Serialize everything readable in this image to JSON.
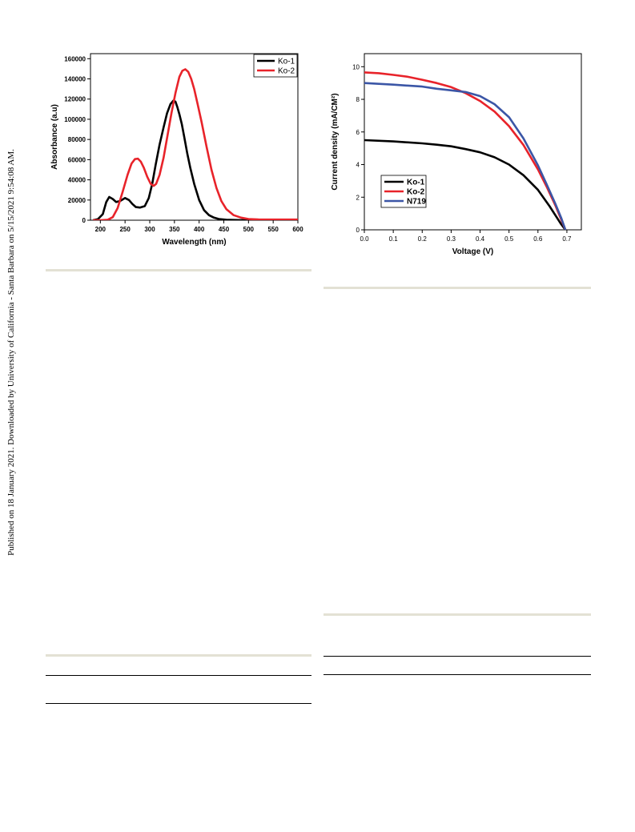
{
  "side_text": "Published on 18 January 2021. Downloaded by University of California - Santa Barbara on 5/15/2021 9:54:08 AM.",
  "colors": {
    "black": "#000000",
    "red": "#e8232a",
    "blue": "#3b56a6",
    "rule_beige": "#e3e1d4"
  },
  "chart_data": [
    {
      "type": "line",
      "xlabel": "Wavelength (nm)",
      "ylabel": "Absorbance (a.u)",
      "xlim": [
        180,
        600
      ],
      "ylim": [
        0,
        165000
      ],
      "xticks": [
        200,
        250,
        300,
        350,
        400,
        450,
        500,
        550,
        600
      ],
      "yticks": [
        0,
        20000,
        40000,
        60000,
        80000,
        100000,
        120000,
        140000,
        160000
      ],
      "legend_position": "top-right",
      "series": [
        {
          "name": "Ko-1",
          "color": "#000000",
          "x": [
            185,
            195,
            205,
            212,
            218,
            225,
            232,
            240,
            250,
            258,
            265,
            272,
            280,
            290,
            298,
            305,
            312,
            320,
            328,
            335,
            342,
            348,
            352,
            356,
            360,
            365,
            370,
            376,
            382,
            390,
            400,
            410,
            420,
            430,
            440,
            455,
            470,
            500,
            550,
            600
          ],
          "y": [
            0,
            1000,
            6000,
            18000,
            23000,
            21000,
            18000,
            19000,
            22000,
            20000,
            16000,
            13000,
            12500,
            14000,
            22000,
            36000,
            55000,
            75000,
            92000,
            106000,
            115000,
            118500,
            117500,
            112000,
            105000,
            95000,
            82000,
            66000,
            52000,
            36000,
            20000,
            10000,
            5000,
            2500,
            1200,
            500,
            200,
            0,
            0,
            0
          ]
        },
        {
          "name": "Ko-2",
          "color": "#e8232a",
          "x": [
            185,
            200,
            215,
            225,
            235,
            245,
            255,
            263,
            270,
            276,
            282,
            288,
            295,
            302,
            308,
            313,
            320,
            328,
            336,
            344,
            352,
            360,
            366,
            372,
            378,
            384,
            390,
            397,
            405,
            415,
            425,
            435,
            445,
            455,
            470,
            485,
            500,
            520,
            550,
            600
          ],
          "y": [
            0,
            0,
            500,
            3000,
            12000,
            28000,
            45000,
            56000,
            60500,
            61000,
            58000,
            52000,
            43000,
            36000,
            34000,
            36000,
            45000,
            62000,
            84000,
            106000,
            126000,
            142000,
            148000,
            149500,
            147000,
            140000,
            130000,
            115000,
            97000,
            73000,
            50000,
            32000,
            19000,
            11000,
            5000,
            2500,
            1200,
            800,
            600,
            600
          ]
        }
      ]
    },
    {
      "type": "line",
      "xlabel": "Voltage (V)",
      "ylabel": "Current density (mA/CM²)",
      "xlim": [
        0,
        0.75
      ],
      "ylim": [
        0,
        10.8
      ],
      "xticks": [
        0.0,
        0.1,
        0.2,
        0.3,
        0.4,
        0.5,
        0.6,
        0.7
      ],
      "yticks": [
        0,
        2,
        4,
        6,
        8,
        10
      ],
      "legend_position": "bottom-left",
      "series": [
        {
          "name": "Ko-1",
          "color": "#000000",
          "x": [
            0,
            0.1,
            0.2,
            0.25,
            0.3,
            0.35,
            0.4,
            0.45,
            0.5,
            0.55,
            0.6,
            0.62,
            0.64,
            0.66,
            0.68,
            0.695
          ],
          "y": [
            5.5,
            5.42,
            5.3,
            5.22,
            5.12,
            4.95,
            4.75,
            4.45,
            4.0,
            3.35,
            2.45,
            1.95,
            1.45,
            0.9,
            0.35,
            0
          ]
        },
        {
          "name": "Ko-2",
          "color": "#e8232a",
          "x": [
            0,
            0.05,
            0.1,
            0.15,
            0.2,
            0.25,
            0.3,
            0.35,
            0.4,
            0.45,
            0.5,
            0.55,
            0.6,
            0.63,
            0.66,
            0.68,
            0.695
          ],
          "y": [
            9.65,
            9.6,
            9.5,
            9.38,
            9.2,
            9.0,
            8.75,
            8.38,
            7.9,
            7.25,
            6.35,
            5.2,
            3.7,
            2.65,
            1.5,
            0.65,
            0
          ]
        },
        {
          "name": "N719",
          "color": "#3b56a6",
          "x": [
            0,
            0.1,
            0.2,
            0.25,
            0.3,
            0.35,
            0.4,
            0.45,
            0.5,
            0.55,
            0.6,
            0.63,
            0.66,
            0.68,
            0.695
          ],
          "y": [
            9.0,
            8.9,
            8.78,
            8.65,
            8.55,
            8.45,
            8.2,
            7.7,
            6.9,
            5.6,
            3.95,
            2.8,
            1.6,
            0.75,
            0
          ]
        }
      ]
    }
  ]
}
